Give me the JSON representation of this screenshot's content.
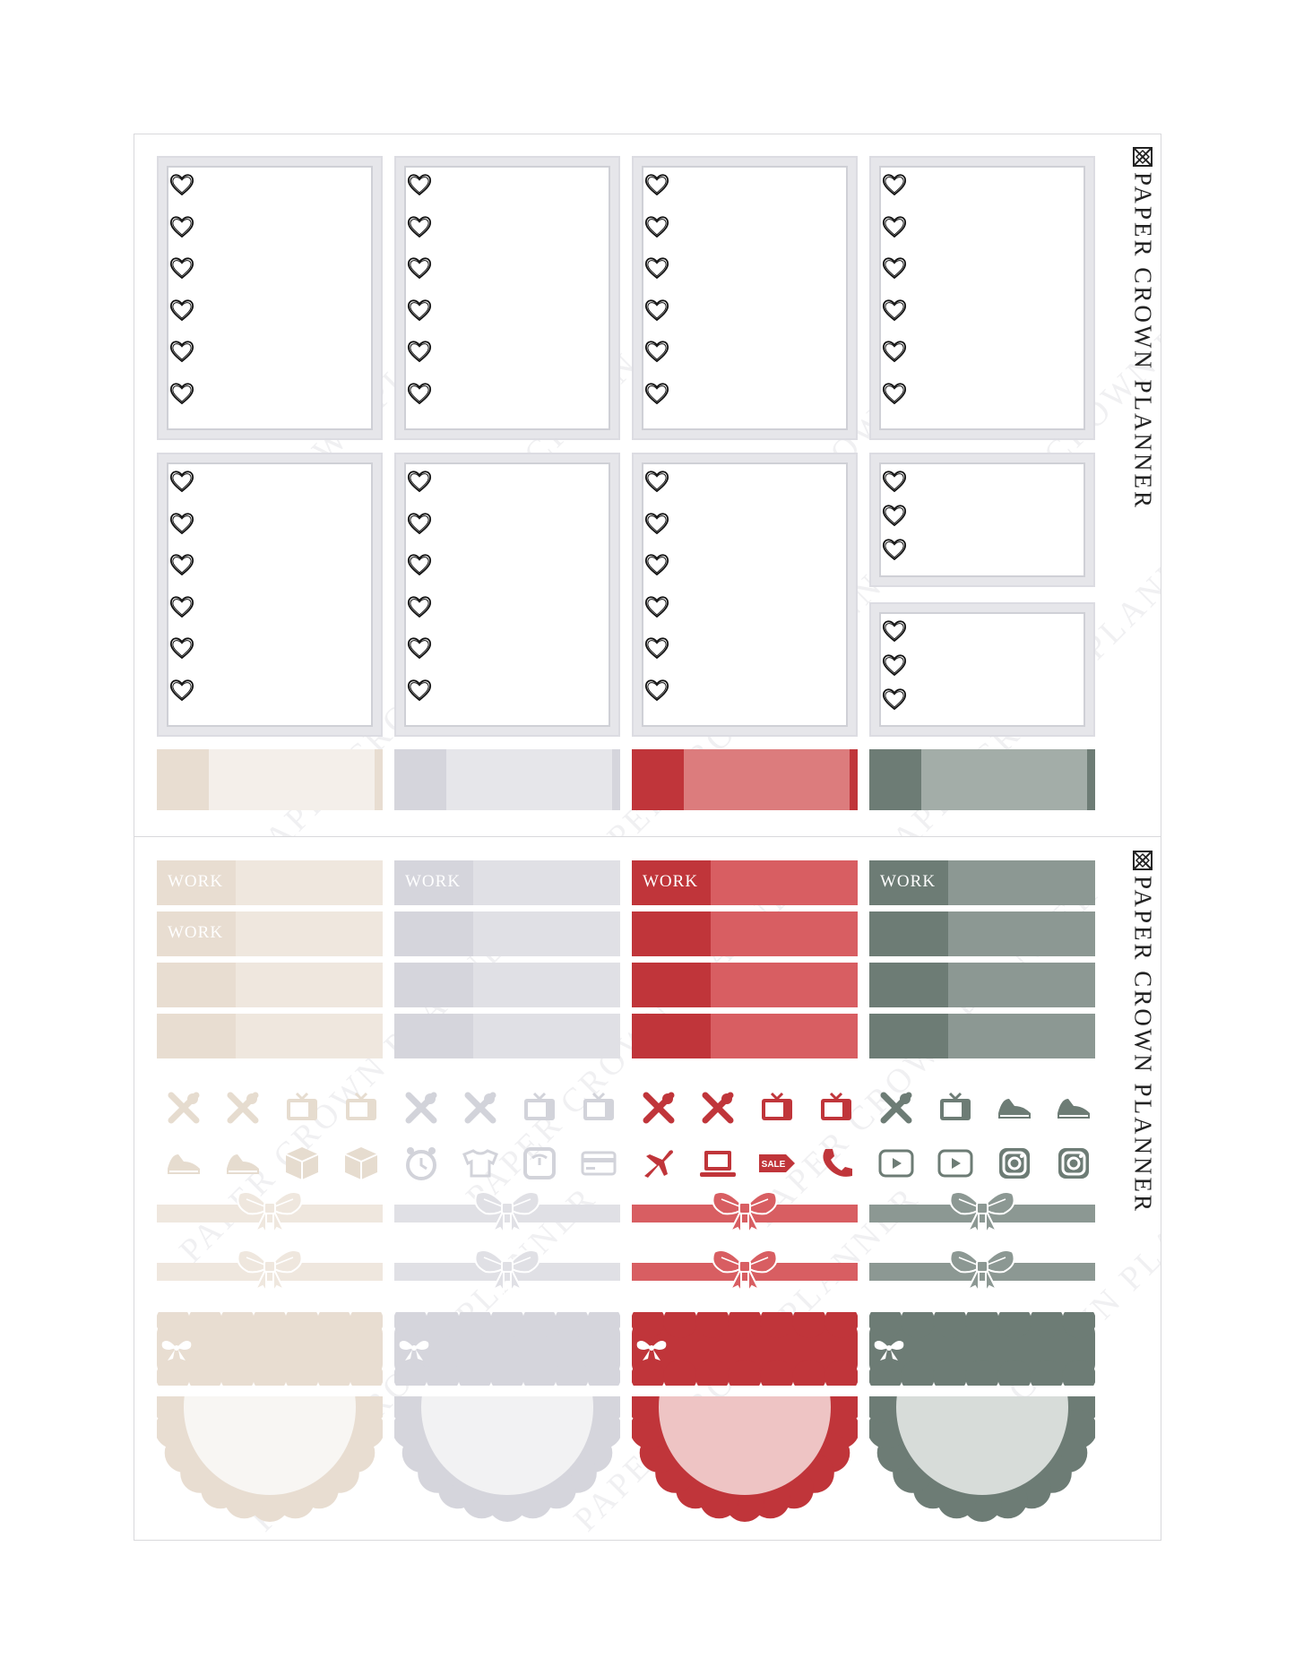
{
  "brand": {
    "name": "PAPER CROWN PLANNER",
    "logo_icon": "crown-diamond-logo-icon"
  },
  "watermark": {
    "text": "PAPER CROWN PLANNER"
  },
  "work_label": "WORK",
  "colors": {
    "beige": {
      "dark": "#e8ddd1",
      "mid": "#efe7de",
      "light": "#f4efea"
    },
    "grey": {
      "dark": "#d5d5dc",
      "mid": "#e0e0e5",
      "light": "#e6e6ea"
    },
    "red": {
      "dark": "#c0353a",
      "mid": "#d85e62",
      "light": "#dc7c7d"
    },
    "green": {
      "dark": "#6d7c75",
      "mid": "#8c9893",
      "light": "#a3ada8"
    },
    "frame": "#e4e4ea",
    "frame_border": "#d0d1d8"
  },
  "icons": {
    "beige": [
      "utensils-icon",
      "utensils-icon",
      "tv-icon",
      "tv-icon",
      "sneaker-icon",
      "sneaker-icon",
      "package-icon",
      "package-icon"
    ],
    "grey": [
      "utensils-icon",
      "utensils-icon",
      "tv-icon",
      "tv-icon",
      "alarm-clock-icon",
      "laundry-icon",
      "scale-icon",
      "credit-card-icon"
    ],
    "red": [
      "utensils-icon",
      "utensils-icon",
      "tv-icon",
      "tv-icon",
      "airplane-icon",
      "laptop-icon",
      "sale-tag-icon",
      "phone-icon"
    ],
    "green": [
      "utensils-icon",
      "tv-icon",
      "sneaker-icon",
      "sneaker-icon",
      "youtube-icon",
      "youtube-icon",
      "instagram-icon",
      "instagram-icon"
    ]
  }
}
